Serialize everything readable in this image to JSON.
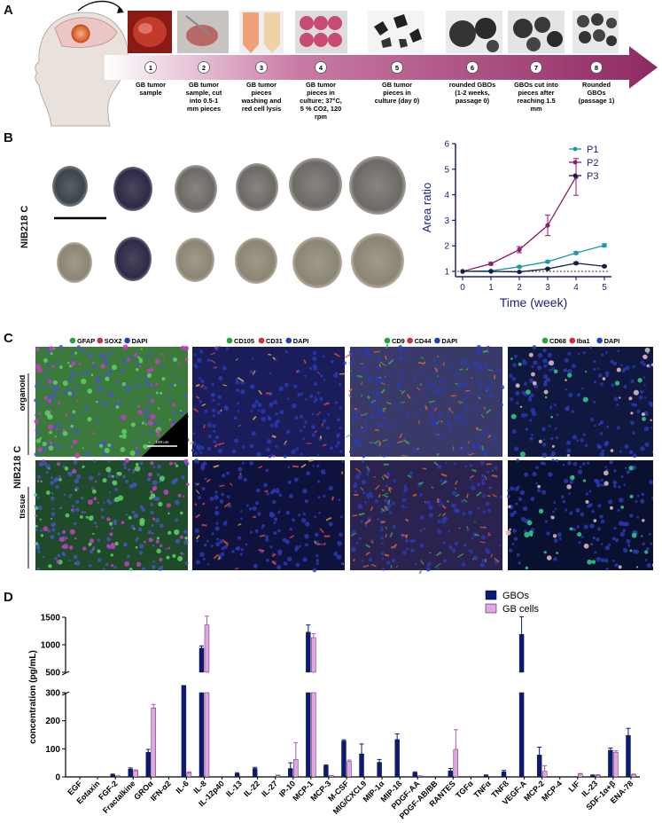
{
  "panels": {
    "a": "A",
    "b": "B",
    "c": "C",
    "d": "D"
  },
  "panelA": {
    "steps": [
      {
        "num": "1",
        "lines": [
          "GB tumor",
          "sample"
        ]
      },
      {
        "num": "2",
        "lines": [
          "GB tumor",
          "sample, cut",
          "into 0.5-1",
          "mm pieces"
        ]
      },
      {
        "num": "3",
        "lines": [
          "GB tumor",
          "pieces",
          "washing and",
          "red cell lysis"
        ]
      },
      {
        "num": "4",
        "lines": [
          "GB tumor",
          "pieces in",
          "culture; 37°C,",
          "5 % CO2, 120",
          "rpm"
        ]
      },
      {
        "num": "5",
        "lines": [
          "GB tumor",
          "pieces in",
          "culture (day 0)"
        ]
      },
      {
        "num": "6",
        "lines": [
          "rounded GBOs",
          "(1-2 weeks,",
          "passage 0)"
        ]
      },
      {
        "num": "7",
        "lines": [
          "GBOs cut into",
          "pieces after",
          "reaching 1.5",
          "mm"
        ]
      },
      {
        "num": "8",
        "lines": [
          "Rounded",
          "GBOs",
          "(passage 1)"
        ]
      }
    ]
  },
  "panelB": {
    "row_label": "NIB218 C",
    "chart_data": {
      "type": "line",
      "x": [
        0,
        1,
        2,
        3,
        4,
        5
      ],
      "xlabel": "Time (week)",
      "ylabel": "Area ratio",
      "xlim": [
        0,
        5
      ],
      "ylim": [
        1,
        6
      ],
      "yticks": [
        1,
        2,
        3,
        4,
        5,
        6
      ],
      "reference_line": 1,
      "legend_position": "top-right",
      "series": [
        {
          "name": "P1",
          "color": "#1a9aa8",
          "values": [
            1.0,
            1.02,
            1.18,
            1.38,
            1.72,
            2.02
          ],
          "err": [
            0,
            0.02,
            0.03,
            0.04,
            0.05,
            0.06
          ]
        },
        {
          "name": "P2",
          "color": "#8b1d6b",
          "values": [
            1.0,
            1.3,
            1.85,
            2.8,
            4.7,
            null
          ],
          "err": [
            0,
            0.05,
            0.12,
            0.4,
            0.72,
            0
          ]
        },
        {
          "name": "P3",
          "color": "#15194f",
          "values": [
            1.0,
            1.0,
            0.98,
            1.1,
            1.32,
            1.2
          ],
          "err": [
            0,
            0.01,
            0.02,
            0.03,
            0.04,
            0.03
          ]
        }
      ]
    }
  },
  "panelC": {
    "side_label": "NIB218 C",
    "row_labels": [
      "organoid",
      "tissue"
    ],
    "scale_label": "100 um",
    "columns": [
      {
        "legend": [
          {
            "t": "GFAP",
            "c": "#1fa53a"
          },
          {
            "t": "SOX2",
            "c": "#d42a3a"
          },
          {
            "t": "DAPI",
            "c": "#1f3fbf"
          }
        ]
      },
      {
        "legend": [
          {
            "t": "CD105",
            "c": "#1fa53a"
          },
          {
            "t": "CD31",
            "c": "#d42a3a"
          },
          {
            "t": "DAPI",
            "c": "#1f3fbf"
          }
        ]
      },
      {
        "legend": [
          {
            "t": "CD9",
            "c": "#1fa53a"
          },
          {
            "t": "CD44",
            "c": "#d42a3a"
          },
          {
            "t": "DAPI",
            "c": "#1f3fbf"
          }
        ]
      },
      {
        "legend": [
          {
            "t": "CD68",
            "c": "#1fa53a"
          },
          {
            "t": "Iba1",
            "c": "#d42a3a"
          },
          {
            "t": "DAPI",
            "c": "#1f3fbf"
          }
        ]
      }
    ]
  },
  "panelD": {
    "chart_data": {
      "type": "bar",
      "ylabel": "concentration (pg/mL)",
      "axis_break": [
        300,
        500
      ],
      "yticks_lower": [
        0,
        100,
        200,
        300
      ],
      "yticks_upper": [
        500,
        1000,
        1500
      ],
      "legend_position": "top-right",
      "categories": [
        "EGF",
        "Eotaxin",
        "FGF-2",
        "Fractalkine",
        "GROα",
        "IFN-α2",
        "IL-6",
        "IL-8",
        "IL-12p40",
        "IL-13",
        "IL-22",
        "IL-27",
        "IP-10",
        "MCP-1",
        "MCP-3",
        "M-CSF",
        "MIG/CXCL9",
        "MIP-1α",
        "MIP-1ß",
        "PDGF-AA",
        "PDGF-AB/BB",
        "RANTES",
        "TGFα",
        "TNFα",
        "TNFß",
        "VEGF-A",
        "MCP-2",
        "MCP-4",
        "LIF",
        "IL-23",
        "SDF-1α+β",
        "ENA-78"
      ],
      "series": [
        {
          "name": "GBOs",
          "color": "#0b1a78",
          "values": [
            0,
            0,
            8,
            28,
            88,
            0,
            400,
            940,
            0,
            12,
            30,
            0,
            30,
            1230,
            40,
            128,
            82,
            52,
            133,
            15,
            0,
            22,
            0,
            5,
            18,
            1190,
            78,
            0,
            0,
            5,
            95,
            148
          ],
          "err": [
            0,
            0,
            2,
            4,
            10,
            0,
            40,
            40,
            0,
            3,
            4,
            0,
            20,
            130,
            3,
            4,
            35,
            10,
            20,
            3,
            0,
            8,
            0,
            2,
            5,
            320,
            28,
            0,
            0,
            2,
            8,
            25
          ]
        },
        {
          "name": "GB cells",
          "color": "#e3a3e6",
          "values": [
            0,
            0,
            3,
            22,
            246,
            0,
            15,
            1360,
            0,
            0,
            0,
            4,
            62,
            1130,
            4,
            55,
            0,
            0,
            0,
            3,
            0,
            98,
            0,
            0,
            0,
            0,
            20,
            0,
            10,
            6,
            88,
            8
          ],
          "err": [
            0,
            0,
            1,
            3,
            12,
            0,
            3,
            160,
            0,
            0,
            0,
            2,
            60,
            70,
            1,
            5,
            0,
            0,
            0,
            1,
            0,
            70,
            0,
            0,
            0,
            0,
            20,
            0,
            2,
            2,
            5,
            2
          ]
        }
      ]
    }
  }
}
